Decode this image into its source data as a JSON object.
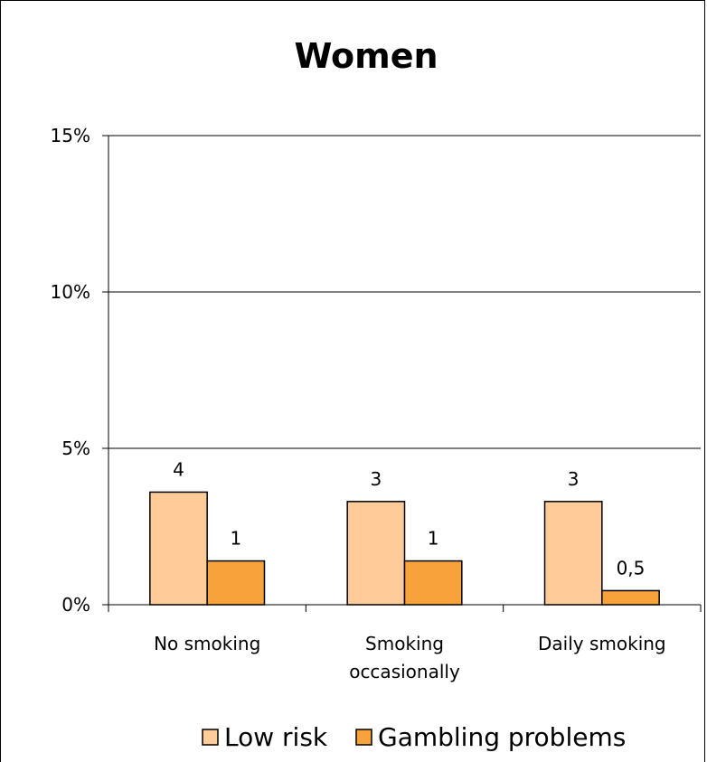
{
  "chart_data": {
    "type": "bar",
    "title": "Women",
    "categories": [
      [
        "No smoking"
      ],
      [
        "Smoking",
        "occasionally"
      ],
      [
        "Daily smoking"
      ]
    ],
    "series": [
      {
        "name": "Low risk",
        "color": "#FFCC99",
        "values": [
          3.6,
          3.3,
          3.3
        ],
        "labels": [
          "4",
          "3",
          "3"
        ]
      },
      {
        "name": "Gambling problems",
        "color": "#F8A23C",
        "values": [
          1.4,
          1.4,
          0.45
        ],
        "labels": [
          "1",
          "1",
          "0,5"
        ]
      }
    ],
    "yticks": [
      "0%",
      "5%",
      "10%",
      "15%"
    ],
    "ylim": [
      0,
      15
    ],
    "ytick_values": [
      0,
      5,
      10,
      15
    ],
    "grid": true,
    "legend_position": "bottom"
  }
}
